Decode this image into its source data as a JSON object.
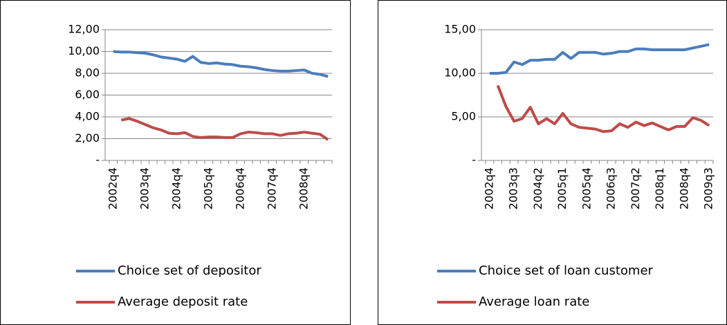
{
  "chart_data": [
    {
      "type": "line",
      "categories": [
        "2002q4",
        null,
        null,
        null,
        "2003q4",
        null,
        null,
        null,
        "2004q4",
        null,
        null,
        null,
        "2005q4",
        null,
        null,
        null,
        "2006q4",
        null,
        null,
        null,
        "2007q4",
        null,
        null,
        null,
        "2008q4",
        null,
        null,
        null
      ],
      "series": [
        {
          "name": "Choice set of depositor",
          "color": "#4a7ebb",
          "values": [
            10.0,
            9.95,
            9.95,
            9.9,
            9.85,
            9.7,
            9.5,
            9.4,
            9.3,
            9.1,
            9.55,
            9.0,
            8.9,
            8.95,
            8.85,
            8.8,
            8.65,
            8.6,
            8.5,
            8.35,
            8.25,
            8.2,
            8.2,
            8.25,
            8.3,
            8.0,
            7.9,
            7.7
          ]
        },
        {
          "name": "Average deposit rate",
          "color": "#be4b48",
          "values": [
            null,
            3.7,
            3.85,
            3.6,
            3.3,
            3.0,
            2.8,
            2.5,
            2.45,
            2.55,
            2.2,
            2.1,
            2.15,
            2.15,
            2.1,
            2.1,
            2.45,
            2.6,
            2.55,
            2.45,
            2.45,
            2.3,
            2.45,
            2.5,
            2.6,
            2.5,
            2.4,
            1.9
          ]
        }
      ],
      "ylim": [
        0,
        12
      ],
      "yticks": [
        {
          "value": 0,
          "label": "-"
        },
        {
          "value": 2,
          "label": "2,00"
        },
        {
          "value": 4,
          "label": "4,00"
        },
        {
          "value": 6,
          "label": "6,00"
        },
        {
          "value": 8,
          "label": "8,00"
        },
        {
          "value": 10,
          "label": "10,00"
        },
        {
          "value": 12,
          "label": "12,00"
        }
      ],
      "grid": true,
      "legend": "bottom"
    },
    {
      "type": "line",
      "categories": [
        "2002q4",
        null,
        null,
        "2003q3",
        null,
        null,
        "2004q2",
        null,
        null,
        "2005q1",
        null,
        null,
        "2005q4",
        null,
        null,
        "2006q3",
        null,
        null,
        "2007q2",
        null,
        null,
        "2008q1",
        null,
        null,
        "2008q4",
        null,
        null,
        "2009q3"
      ],
      "series": [
        {
          "name": "Choice set of loan customer",
          "color": "#4a7ebb",
          "values": [
            10.0,
            10.0,
            10.1,
            11.3,
            11.0,
            11.5,
            11.5,
            11.6,
            11.6,
            12.4,
            11.7,
            12.4,
            12.4,
            12.4,
            12.2,
            12.3,
            12.5,
            12.5,
            12.8,
            12.8,
            12.7,
            12.7,
            12.7,
            12.7,
            12.7,
            12.9,
            13.1,
            13.3
          ]
        },
        {
          "name": "Average loan rate",
          "color": "#be4b48",
          "values": [
            null,
            8.6,
            6.2,
            4.5,
            4.8,
            6.1,
            4.2,
            4.8,
            4.2,
            5.4,
            4.2,
            3.8,
            3.7,
            3.6,
            3.3,
            3.4,
            4.2,
            3.8,
            4.4,
            4.0,
            4.3,
            3.9,
            3.5,
            3.9,
            3.9,
            4.9,
            4.6,
            4.0
          ]
        }
      ],
      "ylim": [
        0,
        15
      ],
      "yticks": [
        {
          "value": 0,
          "label": "-"
        },
        {
          "value": 5,
          "label": "5,00"
        },
        {
          "value": 10,
          "label": "10,00"
        },
        {
          "value": 15,
          "label": "15,00"
        }
      ],
      "grid": true,
      "legend": "bottom"
    }
  ]
}
